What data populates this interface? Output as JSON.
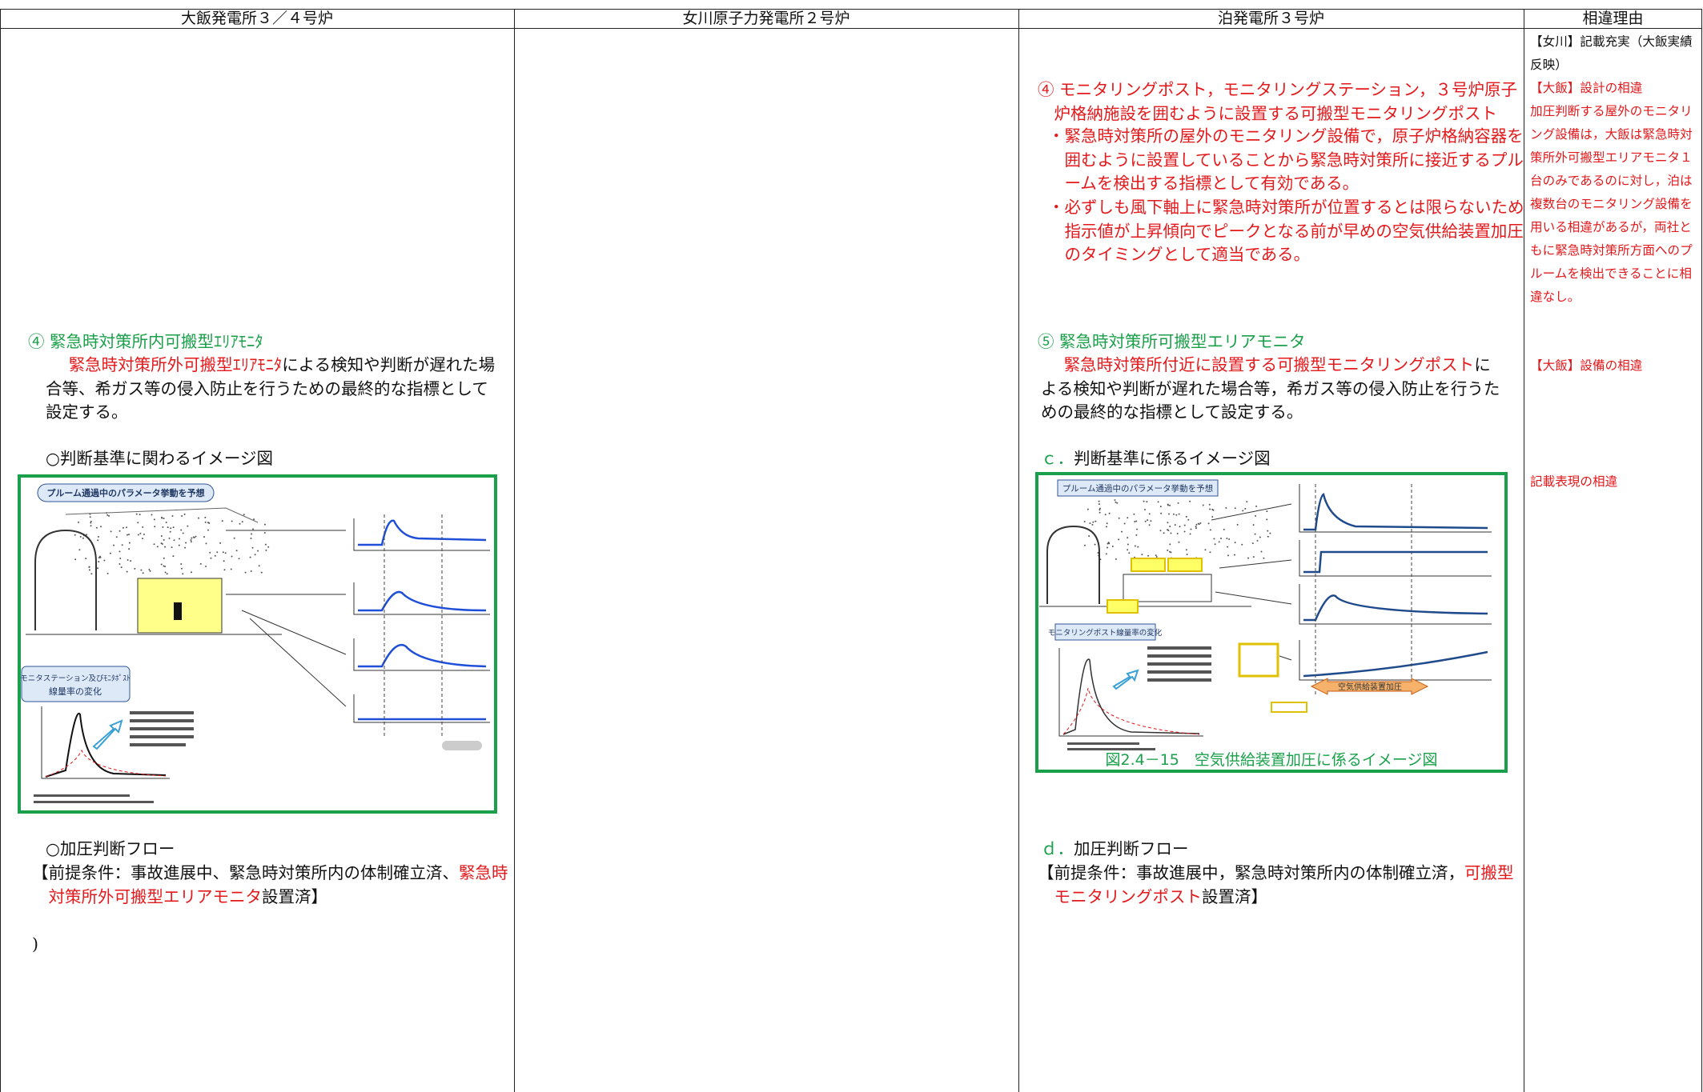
{
  "header": {
    "columns": [
      "大飯発電所３／４号炉",
      "女川原子力発電所２号炉",
      "泊発電所３号炉",
      "相違理由"
    ]
  },
  "ohi": {
    "heading": "④ 緊急時対策所内可搬型ｴﾘｱﾓﾆﾀ",
    "paragraph": [
      "緊急時対策所外可搬型ｴﾘｱﾓﾆﾀ",
      "による検知や判断が遅れた場合等、希ガス等の侵入防止を行うための最終的な指標として設定する。"
    ],
    "figure_title": "○判断基準に関わるイメージ図",
    "figure": {
      "title": "プルーム通過中のパラメータ挙動を予想",
      "inset_title": [
        "モニタステーション及びﾓﾆﾀﾎﾟｽﾄ",
        "線量率の変化"
      ]
    },
    "flow_title": "○加圧判断フロー",
    "precondition": [
      "【前提条件：事故進展中、緊急時対策所内の体制確立済、",
      "緊急時対策所外可搬型エリアモニタ",
      "設置済】"
    ],
    "trailing": ")"
  },
  "tomari": {
    "item4": {
      "heading": "④ モニタリングポスト，モニタリングステーション，３号炉原子炉格納施設を囲むように設置する可搬型モニタリングポスト",
      "bullets": [
        "・緊急時対策所の屋外のモニタリング設備で，原子炉格納容器を囲むように設置していることから緊急時対策所に接近するプルームを検出する指標として有効である。",
        "・必ずしも風下軸上に緊急時対策所が位置するとは限らないため指示値が上昇傾向でピークとなる前が早めの空気供給装置加圧のタイミングとして適当である。"
      ]
    },
    "item5": {
      "heading": "⑤ 緊急時対策所可搬型エリアモニタ",
      "paragraph": [
        "緊急時対策所付近に設置する可搬型モニタリングポスト",
        "による検知や判断が遅れた場合等，希ガス等の侵入防止を行うための最終的な指標として設定する。"
      ]
    },
    "figure_title": {
      "label": "ｃ．",
      "text": "判断基準に係るイメージ図"
    },
    "figure": {
      "title": "プルーム通過中のパラメータ挙動を予想",
      "inset_title": "モニタリングポスト線量率の変化",
      "arrow_label": "空気供給装置加圧",
      "caption": "図2.4－15　空気供給装置加圧に係るイメージ図"
    },
    "flow_title": {
      "label": "ｄ．",
      "text": "加圧判断フロー"
    },
    "precondition": [
      "【前提条件：事故進展中，緊急時対策所内の体制確立済，",
      "可搬型モニタリングポスト",
      "設置済】"
    ]
  },
  "reason": [
    "【女川】記載充実（大飯実績反映）",
    "【大飯】設計の相違",
    "加圧判断する屋外のモニタリング設備は，大飯は緊急時対策所外可搬型エリアモニタ１台のみであるのに対し，泊は複数台のモニタリング設備を用いる相違があるが，両社ともに緊急時対策所方面へのプルームを検出できることに相違なし。",
    "【大飯】設備の相違",
    "記載表現の相違"
  ]
}
